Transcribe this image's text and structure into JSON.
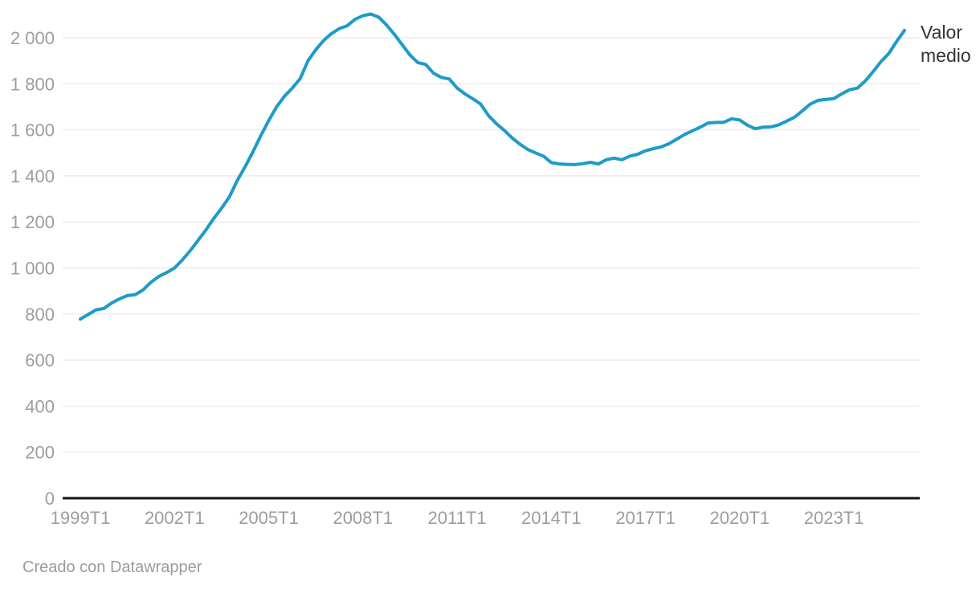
{
  "annotation": {
    "series_label": "Valor medio"
  },
  "footer": {
    "attribution": "Creado con Datawrapper"
  },
  "colors": {
    "line": "#1d9bc9",
    "axis_text": "#9d9d9d",
    "grid": "#e2e2e2",
    "baseline": "#141414",
    "annotation_text": "#333333",
    "footer_text": "#9b9b9b",
    "background": "#ffffff"
  },
  "chart_data": {
    "type": "line",
    "title": "",
    "xlabel": "",
    "ylabel": "",
    "x_start": "1999T1",
    "x_end": "2025T2",
    "x_frequency": "quarterly",
    "x_tick_labels": [
      "1999T1",
      "2002T1",
      "2005T1",
      "2008T1",
      "2011T1",
      "2014T1",
      "2017T1",
      "2020T1",
      "2023T1"
    ],
    "x_tick_interval_quarters": 12,
    "y_ticks": [
      0,
      200,
      400,
      600,
      800,
      1000,
      1200,
      1400,
      1600,
      1800,
      2000
    ],
    "y_tick_labels": [
      "0",
      "200",
      "400",
      "600",
      "800",
      "1 000",
      "1 200",
      "1 400",
      "1 600",
      "1 800",
      "2 000"
    ],
    "ylim": [
      0,
      2150
    ],
    "grid": "horizontal",
    "legend_position": "end-of-line-label",
    "series": [
      {
        "name": "Valor medio",
        "values": [
          778,
          798,
          818,
          824,
          848,
          866,
          880,
          884,
          905,
          938,
          963,
          980,
          1000,
          1035,
          1075,
          1120,
          1165,
          1215,
          1260,
          1310,
          1380,
          1440,
          1505,
          1575,
          1640,
          1700,
          1746,
          1781,
          1822,
          1900,
          1948,
          1988,
          2018,
          2040,
          2052,
          2080,
          2096,
          2103,
          2090,
          2056,
          2015,
          1970,
          1925,
          1892,
          1884,
          1846,
          1828,
          1821,
          1782,
          1756,
          1735,
          1712,
          1662,
          1627,
          1598,
          1565,
          1538,
          1515,
          1500,
          1486,
          1458,
          1452,
          1450,
          1449,
          1453,
          1459,
          1452,
          1470,
          1477,
          1470,
          1486,
          1494,
          1509,
          1518,
          1526,
          1540,
          1560,
          1580,
          1596,
          1612,
          1630,
          1632,
          1633,
          1648,
          1643,
          1620,
          1605,
          1612,
          1613,
          1622,
          1638,
          1655,
          1683,
          1712,
          1728,
          1732,
          1736,
          1756,
          1774,
          1781,
          1812,
          1853,
          1896,
          1932,
          1984,
          2032
        ]
      }
    ]
  }
}
